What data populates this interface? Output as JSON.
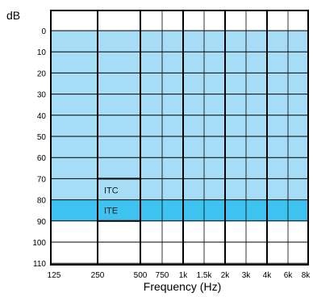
{
  "chart_data": {
    "type": "area",
    "ylabel": "dB",
    "xlabel": "Frequency (Hz)",
    "x_tick_labels": [
      "125",
      "250",
      "500",
      "750",
      "1k",
      "1.5k",
      "2k",
      "3k",
      "4k",
      "6k",
      "8k"
    ],
    "y_tick_labels": [
      "0",
      "10",
      "20",
      "30",
      "40",
      "50",
      "60",
      "70",
      "80",
      "90",
      "100",
      "110"
    ],
    "ylim": [
      0,
      110
    ],
    "y_axis_inverted": true,
    "grid": true,
    "regions": [
      {
        "name": "",
        "x_range": [
          "125",
          "8k"
        ],
        "y_range": [
          0,
          80
        ],
        "color": "#a6dcf5"
      },
      {
        "name": "ITE",
        "x_range": [
          "125",
          "8k"
        ],
        "y_range": [
          80,
          90
        ],
        "color": "#3ec3f0"
      },
      {
        "name": "ITC",
        "x_range": [
          "250",
          "500"
        ],
        "y_range": [
          70,
          90
        ],
        "color": "none"
      }
    ]
  }
}
